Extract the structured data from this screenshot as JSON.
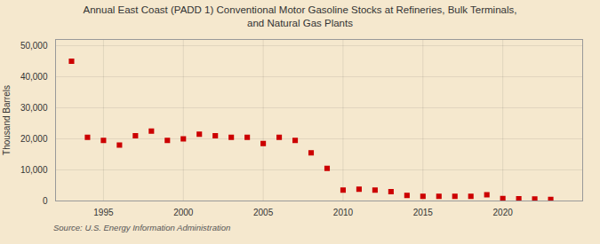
{
  "chart_data": {
    "type": "scatter",
    "title": "Annual East Coast (PADD 1) Conventional Motor Gasoline Stocks at Refineries, Bulk Terminals,\nand Natural Gas Plants",
    "ylabel": "Thousand Barrels",
    "source": "Source: U.S. Energy Information Administration",
    "color": "#cc0000",
    "marker": "square",
    "x": [
      1993,
      1994,
      1995,
      1996,
      1997,
      1998,
      1999,
      2000,
      2001,
      2002,
      2003,
      2004,
      2005,
      2006,
      2007,
      2008,
      2009,
      2010,
      2011,
      2012,
      2013,
      2014,
      2015,
      2016,
      2017,
      2018,
      2019,
      2020,
      2021,
      2022,
      2023
    ],
    "values": [
      45000,
      20500,
      19500,
      18000,
      21000,
      22500,
      19500,
      20000,
      21500,
      21000,
      20500,
      20500,
      18500,
      20500,
      19500,
      15500,
      10500,
      3500,
      3800,
      3500,
      3000,
      1800,
      1500,
      1500,
      1500,
      1500,
      2000,
      800,
      700,
      600,
      500
    ],
    "xlim": [
      1992,
      2025
    ],
    "xticks": [
      1995,
      2000,
      2005,
      2010,
      2015,
      2020
    ],
    "ylim": [
      0,
      52000
    ],
    "yticks": [
      0,
      {
        "value": 10000,
        "label": "10,000"
      },
      {
        "value": 20000,
        "label": "20,000"
      },
      {
        "value": 30000,
        "label": "30,000"
      },
      {
        "value": 40000,
        "label": "40,000"
      },
      {
        "value": 50000,
        "label": "50,000"
      }
    ],
    "grid": true
  }
}
